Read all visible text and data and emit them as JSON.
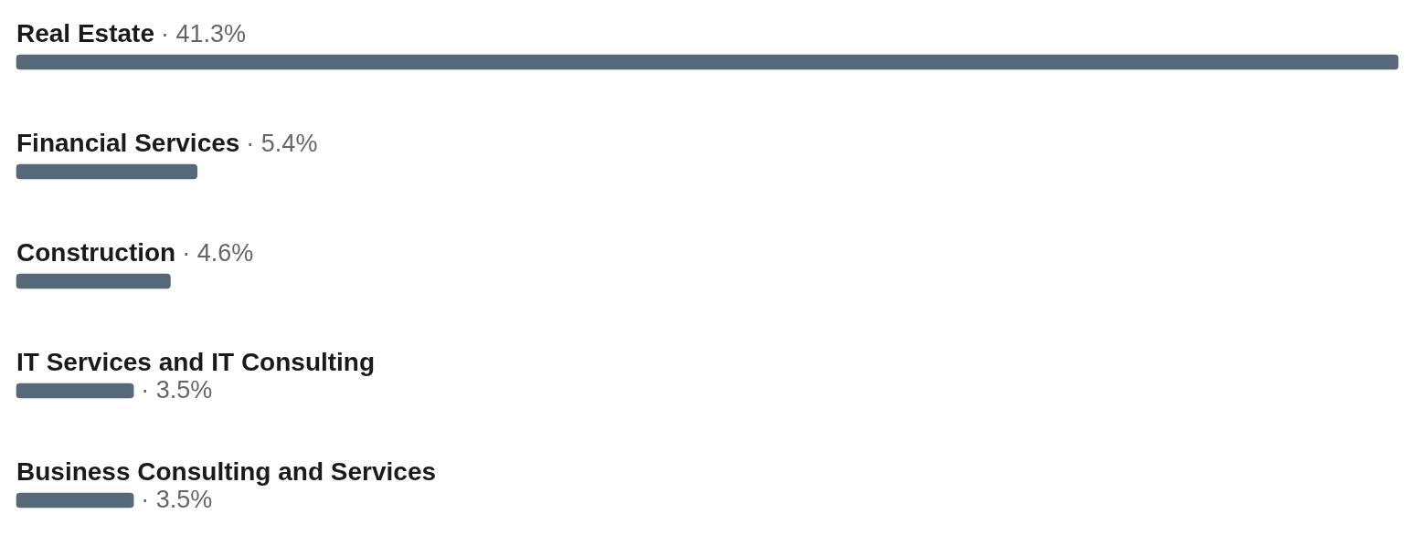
{
  "chart_data": {
    "type": "bar",
    "orientation": "horizontal",
    "categories": [
      "Real Estate",
      "Financial Services",
      "Construction",
      "IT Services and IT Consulting",
      "Business Consulting and Services"
    ],
    "values": [
      41.3,
      5.4,
      4.6,
      3.5,
      3.5
    ],
    "color": "#56697b",
    "value_labels": [
      "· 41.3%",
      "· 5.4%",
      "· 4.6%",
      "· 3.5%",
      "· 3.5%"
    ],
    "grid": false,
    "legend": false
  }
}
